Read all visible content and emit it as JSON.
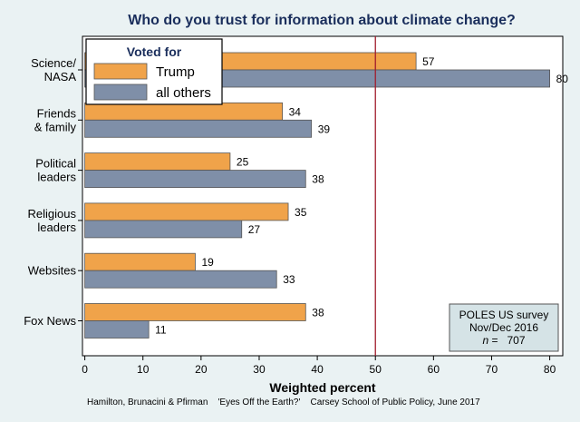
{
  "chart_data": {
    "type": "bar",
    "orientation": "horizontal",
    "title": "Who do you trust for information about climate change?",
    "categories": [
      [
        "Science/",
        "NASA"
      ],
      [
        "Friends",
        "& family"
      ],
      [
        "Political",
        "leaders"
      ],
      [
        "Religious",
        "leaders"
      ],
      [
        "Websites"
      ],
      [
        "Fox News"
      ]
    ],
    "series": [
      {
        "name": "Trump",
        "color": "#f0a34a",
        "values": [
          57,
          34,
          25,
          35,
          19,
          38
        ]
      },
      {
        "name": "all others",
        "color": "#7f8fa8",
        "values": [
          80,
          39,
          38,
          27,
          33,
          11
        ]
      }
    ],
    "xlabel": "Weighted percent",
    "xlim": [
      0,
      80
    ],
    "xticks": [
      0,
      10,
      20,
      30,
      40,
      50,
      60,
      70,
      80
    ],
    "reference_line": {
      "x": 50,
      "color": "#a01c2c"
    },
    "legend": {
      "title": "Voted for",
      "placement": "top-left"
    },
    "grid": false,
    "note": {
      "lines": [
        "POLES US survey",
        "Nov/Dec 2016"
      ],
      "n_symbol": "n",
      "n_rest": " =   707"
    }
  },
  "footer": "Hamilton, Brunacini & Pfirman    'Eyes Off the Earth?'    Carsey School of Public Policy, June 2017",
  "colors": {
    "background": "#eaf2f3",
    "plot_background": "#ffffff",
    "title": "#1a2e5c",
    "note_box": "#d5e3e6"
  }
}
